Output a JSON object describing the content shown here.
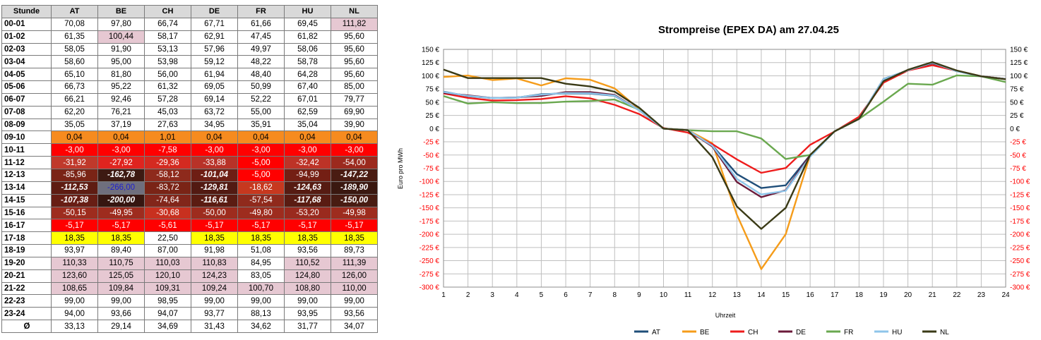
{
  "table": {
    "header_label": "Stunde",
    "countries": [
      "AT",
      "BE",
      "CH",
      "DE",
      "FR",
      "HU",
      "NL"
    ],
    "rows": [
      {
        "hour": "00-01",
        "cells": [
          {
            "v": "70,08"
          },
          {
            "v": "97,80"
          },
          {
            "v": "66,74"
          },
          {
            "v": "67,71"
          },
          {
            "v": "61,66"
          },
          {
            "v": "69,45"
          },
          {
            "v": "111,82",
            "bg": "#e6c8d2"
          }
        ]
      },
      {
        "hour": "01-02",
        "cells": [
          {
            "v": "61,35"
          },
          {
            "v": "100,44",
            "bg": "#e6c8d2"
          },
          {
            "v": "58,17"
          },
          {
            "v": "62,91"
          },
          {
            "v": "47,45"
          },
          {
            "v": "61,82"
          },
          {
            "v": "95,60"
          }
        ]
      },
      {
        "hour": "02-03",
        "cells": [
          {
            "v": "58,05"
          },
          {
            "v": "91,90"
          },
          {
            "v": "53,13"
          },
          {
            "v": "57,96"
          },
          {
            "v": "49,97"
          },
          {
            "v": "58,06"
          },
          {
            "v": "95,60"
          }
        ]
      },
      {
        "hour": "03-04",
        "cells": [
          {
            "v": "58,60"
          },
          {
            "v": "95,00"
          },
          {
            "v": "53,98"
          },
          {
            "v": "59,12"
          },
          {
            "v": "48,22"
          },
          {
            "v": "58,78"
          },
          {
            "v": "95,60"
          }
        ]
      },
      {
        "hour": "04-05",
        "cells": [
          {
            "v": "65,10"
          },
          {
            "v": "81,80"
          },
          {
            "v": "56,00"
          },
          {
            "v": "61,94"
          },
          {
            "v": "48,40"
          },
          {
            "v": "64,28"
          },
          {
            "v": "95,60"
          }
        ]
      },
      {
        "hour": "05-06",
        "cells": [
          {
            "v": "66,73"
          },
          {
            "v": "95,22"
          },
          {
            "v": "61,32"
          },
          {
            "v": "69,05"
          },
          {
            "v": "50,99"
          },
          {
            "v": "67,40"
          },
          {
            "v": "85,00"
          }
        ]
      },
      {
        "hour": "06-07",
        "cells": [
          {
            "v": "66,21"
          },
          {
            "v": "92,46"
          },
          {
            "v": "57,28"
          },
          {
            "v": "69,14"
          },
          {
            "v": "52,22"
          },
          {
            "v": "67,01"
          },
          {
            "v": "79,77"
          }
        ]
      },
      {
        "hour": "07-08",
        "cells": [
          {
            "v": "62,20"
          },
          {
            "v": "76,21"
          },
          {
            "v": "45,03"
          },
          {
            "v": "63,72"
          },
          {
            "v": "55,00"
          },
          {
            "v": "62,59"
          },
          {
            "v": "69,90"
          }
        ]
      },
      {
        "hour": "08-09",
        "cells": [
          {
            "v": "35,05"
          },
          {
            "v": "37,19"
          },
          {
            "v": "27,63"
          },
          {
            "v": "34,95"
          },
          {
            "v": "35,91"
          },
          {
            "v": "35,04"
          },
          {
            "v": "39,90"
          }
        ]
      },
      {
        "hour": "09-10",
        "cells": [
          {
            "v": "0,04",
            "bg": "#f68b1f"
          },
          {
            "v": "0,04",
            "bg": "#f68b1f"
          },
          {
            "v": "1,01",
            "bg": "#f68b1f"
          },
          {
            "v": "0,04",
            "bg": "#f68b1f"
          },
          {
            "v": "0,04",
            "bg": "#f68b1f"
          },
          {
            "v": "0,04",
            "bg": "#f68b1f"
          },
          {
            "v": "0,04",
            "bg": "#f68b1f"
          }
        ]
      },
      {
        "hour": "10-11",
        "cells": [
          {
            "v": "-3,00",
            "bg": "#ff0000",
            "fg": "#ffffff"
          },
          {
            "v": "-3,00",
            "bg": "#ff0000",
            "fg": "#ffffff"
          },
          {
            "v": "-7,58",
            "bg": "#ff0000",
            "fg": "#ffffff"
          },
          {
            "v": "-3,00",
            "bg": "#ff0000",
            "fg": "#ffffff"
          },
          {
            "v": "-3,00",
            "bg": "#ff0000",
            "fg": "#ffffff"
          },
          {
            "v": "-3,00",
            "bg": "#ff0000",
            "fg": "#ffffff"
          },
          {
            "v": "-3,00",
            "bg": "#ff0000",
            "fg": "#ffffff"
          }
        ]
      },
      {
        "hour": "11-12",
        "cells": [
          {
            "v": "-31,92",
            "bg": "#c0392b",
            "fg": "#ffffff"
          },
          {
            "v": "-27,92",
            "bg": "#e0241f",
            "fg": "#ffffff"
          },
          {
            "v": "-29,36",
            "bg": "#d42a20",
            "fg": "#ffffff"
          },
          {
            "v": "-33,88",
            "bg": "#b83228",
            "fg": "#ffffff"
          },
          {
            "v": "-5,00",
            "bg": "#ff0000",
            "fg": "#ffffff"
          },
          {
            "v": "-32,42",
            "bg": "#bd3327",
            "fg": "#ffffff"
          },
          {
            "v": "-54,00",
            "bg": "#9c2a1e",
            "fg": "#ffffff"
          }
        ]
      },
      {
        "hour": "12-13",
        "cells": [
          {
            "v": "-85,96",
            "bg": "#7a2416",
            "fg": "#ffffff"
          },
          {
            "v": "-162,78",
            "bg": "#3d1a12",
            "fg": "#ffffff",
            "b": true
          },
          {
            "v": "-58,12",
            "bg": "#8e2a1c",
            "fg": "#ffffff"
          },
          {
            "v": "-101,04",
            "bg": "#6e1e14",
            "fg": "#ffffff",
            "b": true
          },
          {
            "v": "-5,00",
            "bg": "#ff0000",
            "fg": "#ffffff"
          },
          {
            "v": "-94,99",
            "bg": "#741f14",
            "fg": "#ffffff"
          },
          {
            "v": "-147,22",
            "bg": "#4a1c12",
            "fg": "#ffffff",
            "b": true
          }
        ]
      },
      {
        "hour": "13-14",
        "cells": [
          {
            "v": "-112,53",
            "bg": "#5e1c12",
            "fg": "#ffffff",
            "b": true
          },
          {
            "v": "-266,00",
            "bg": "#6f6f7d",
            "fg": "#1f1fcf"
          },
          {
            "v": "-83,72",
            "bg": "#7a2416",
            "fg": "#ffffff"
          },
          {
            "v": "-129,81",
            "bg": "#521a12",
            "fg": "#ffffff",
            "b": true
          },
          {
            "v": "-18,62",
            "bg": "#c7381f",
            "fg": "#ffffff"
          },
          {
            "v": "-124,63",
            "bg": "#561b12",
            "fg": "#ffffff",
            "b": true
          },
          {
            "v": "-189,90",
            "bg": "#3a1810",
            "fg": "#ffffff",
            "b": true
          }
        ]
      },
      {
        "hour": "14-15",
        "cells": [
          {
            "v": "-107,38",
            "bg": "#681e14",
            "fg": "#ffffff",
            "b": true
          },
          {
            "v": "-200,00",
            "bg": "#361610",
            "fg": "#ffffff",
            "b": true
          },
          {
            "v": "-74,64",
            "bg": "#82261a",
            "fg": "#ffffff"
          },
          {
            "v": "-116,61",
            "bg": "#5b1c12",
            "fg": "#ffffff",
            "b": true
          },
          {
            "v": "-57,54",
            "bg": "#902a1c",
            "fg": "#ffffff"
          },
          {
            "v": "-117,68",
            "bg": "#5a1c12",
            "fg": "#ffffff",
            "b": true
          },
          {
            "v": "-150,00",
            "bg": "#481c12",
            "fg": "#ffffff",
            "b": true
          }
        ]
      },
      {
        "hour": "15-16",
        "cells": [
          {
            "v": "-50,15",
            "bg": "#9e2c1e",
            "fg": "#ffffff"
          },
          {
            "v": "-49,95",
            "bg": "#9e2c1e",
            "fg": "#ffffff"
          },
          {
            "v": "-30,68",
            "bg": "#c8301f",
            "fg": "#ffffff"
          },
          {
            "v": "-50,00",
            "bg": "#9e2c1e",
            "fg": "#ffffff"
          },
          {
            "v": "-49,80",
            "bg": "#9e2c1e",
            "fg": "#ffffff"
          },
          {
            "v": "-53,20",
            "bg": "#9a2a1e",
            "fg": "#ffffff"
          },
          {
            "v": "-49,98",
            "bg": "#9e2c1e",
            "fg": "#ffffff"
          }
        ]
      },
      {
        "hour": "16-17",
        "cells": [
          {
            "v": "-5,17",
            "bg": "#ff0000",
            "fg": "#ffffff"
          },
          {
            "v": "-5,17",
            "bg": "#ff0000",
            "fg": "#ffffff"
          },
          {
            "v": "-5,61",
            "bg": "#ff0000",
            "fg": "#ffffff"
          },
          {
            "v": "-5,17",
            "bg": "#ff0000",
            "fg": "#ffffff"
          },
          {
            "v": "-5,17",
            "bg": "#ff0000",
            "fg": "#ffffff"
          },
          {
            "v": "-5,17",
            "bg": "#ff0000",
            "fg": "#ffffff"
          },
          {
            "v": "-5,17",
            "bg": "#ff0000",
            "fg": "#ffffff"
          }
        ]
      },
      {
        "hour": "17-18",
        "cells": [
          {
            "v": "18,35",
            "bg": "#ffff00"
          },
          {
            "v": "18,35",
            "bg": "#ffff00"
          },
          {
            "v": "22,50"
          },
          {
            "v": "18,35",
            "bg": "#ffff00"
          },
          {
            "v": "18,35",
            "bg": "#ffff00"
          },
          {
            "v": "18,35",
            "bg": "#ffff00"
          },
          {
            "v": "18,35",
            "bg": "#ffff00"
          }
        ]
      },
      {
        "hour": "18-19",
        "cells": [
          {
            "v": "93,97"
          },
          {
            "v": "89,40"
          },
          {
            "v": "87,00"
          },
          {
            "v": "91,98"
          },
          {
            "v": "51,08"
          },
          {
            "v": "93,56"
          },
          {
            "v": "89,73"
          }
        ]
      },
      {
        "hour": "19-20",
        "cells": [
          {
            "v": "110,33",
            "bg": "#e6c8d2"
          },
          {
            "v": "110,75",
            "bg": "#e6c8d2"
          },
          {
            "v": "110,03",
            "bg": "#e6c8d2"
          },
          {
            "v": "110,83",
            "bg": "#e6c8d2"
          },
          {
            "v": "84,95"
          },
          {
            "v": "110,52",
            "bg": "#e6c8d2"
          },
          {
            "v": "111,39",
            "bg": "#e6c8d2"
          }
        ]
      },
      {
        "hour": "20-21",
        "cells": [
          {
            "v": "123,60",
            "bg": "#e6c8d2"
          },
          {
            "v": "125,05",
            "bg": "#e6c8d2"
          },
          {
            "v": "120,10",
            "bg": "#e6c8d2"
          },
          {
            "v": "124,23",
            "bg": "#e6c8d2"
          },
          {
            "v": "83,05"
          },
          {
            "v": "124,80",
            "bg": "#e6c8d2"
          },
          {
            "v": "126,00",
            "bg": "#e6c8d2"
          }
        ]
      },
      {
        "hour": "21-22",
        "cells": [
          {
            "v": "108,65",
            "bg": "#e6c8d2"
          },
          {
            "v": "109,84",
            "bg": "#e6c8d2"
          },
          {
            "v": "109,31",
            "bg": "#e6c8d2"
          },
          {
            "v": "109,24",
            "bg": "#e6c8d2"
          },
          {
            "v": "100,70",
            "bg": "#e6c8d2"
          },
          {
            "v": "108,80",
            "bg": "#e6c8d2"
          },
          {
            "v": "110,00",
            "bg": "#e6c8d2"
          }
        ]
      },
      {
        "hour": "22-23",
        "cells": [
          {
            "v": "99,00"
          },
          {
            "v": "99,00"
          },
          {
            "v": "98,95"
          },
          {
            "v": "99,00"
          },
          {
            "v": "99,00"
          },
          {
            "v": "99,00"
          },
          {
            "v": "99,00"
          }
        ]
      },
      {
        "hour": "23-24",
        "cells": [
          {
            "v": "94,00"
          },
          {
            "v": "93,66"
          },
          {
            "v": "94,07"
          },
          {
            "v": "93,77"
          },
          {
            "v": "88,13"
          },
          {
            "v": "93,95"
          },
          {
            "v": "93,56"
          }
        ]
      }
    ],
    "average": {
      "label": "Ø",
      "values": [
        "33,13",
        "29,14",
        "34,69",
        "31,43",
        "34,62",
        "31,77",
        "34,07"
      ]
    }
  },
  "chart_data": {
    "type": "line",
    "title": "Strompreise (EPEX DA) am 27.04.25",
    "xlabel": "Uhrzeit",
    "ylabel": "Euro pro MWh",
    "x": [
      1,
      2,
      3,
      4,
      5,
      6,
      7,
      8,
      9,
      10,
      11,
      12,
      13,
      14,
      15,
      16,
      17,
      18,
      19,
      20,
      21,
      22,
      23,
      24
    ],
    "ylim": [
      -300,
      150
    ],
    "yticks": [
      150,
      125,
      100,
      75,
      50,
      25,
      0,
      -25,
      -50,
      -75,
      -100,
      -125,
      -150,
      -175,
      -200,
      -225,
      -250,
      -275,
      -300
    ],
    "ytick_labels": [
      "150 €",
      "125 €",
      "100 €",
      "75 €",
      "50 €",
      "25 €",
      "0 €",
      "-25 €",
      "-50 €",
      "-75 €",
      "-100 €",
      "-125 €",
      "-150 €",
      "-175 €",
      "-200 €",
      "-225 €",
      "-250 €",
      "-275 €",
      "-300 €"
    ],
    "negative_tick_color": "#ff0000",
    "grid": true,
    "legend": "bottom",
    "series": [
      {
        "name": "AT",
        "color": "#1f4e79",
        "values": [
          70.08,
          61.35,
          58.05,
          58.6,
          65.1,
          66.73,
          66.21,
          62.2,
          35.05,
          0.04,
          -3.0,
          -31.92,
          -85.96,
          -112.53,
          -107.38,
          -50.15,
          -5.17,
          18.35,
          93.97,
          110.33,
          123.6,
          108.65,
          99.0,
          94.0
        ]
      },
      {
        "name": "BE",
        "color": "#f59c1a",
        "values": [
          97.8,
          100.44,
          91.9,
          95.0,
          81.8,
          95.22,
          92.46,
          76.21,
          37.19,
          0.04,
          -3.0,
          -27.92,
          -162.78,
          -266.0,
          -200.0,
          -49.95,
          -5.17,
          18.35,
          89.4,
          110.75,
          125.05,
          109.84,
          99.0,
          93.66
        ]
      },
      {
        "name": "CH",
        "color": "#ee1c1c",
        "values": [
          66.74,
          58.17,
          53.13,
          53.98,
          56.0,
          61.32,
          57.28,
          45.03,
          27.63,
          1.01,
          -7.58,
          -29.36,
          -58.12,
          -83.72,
          -74.64,
          -30.68,
          -5.61,
          22.5,
          87.0,
          110.03,
          120.1,
          109.31,
          98.95,
          94.07
        ]
      },
      {
        "name": "DE",
        "color": "#6b1a3a",
        "values": [
          67.71,
          62.91,
          57.96,
          59.12,
          61.94,
          69.05,
          69.14,
          63.72,
          34.95,
          0.04,
          -3.0,
          -33.88,
          -101.04,
          -129.81,
          -116.61,
          -50.0,
          -5.17,
          18.35,
          91.98,
          110.83,
          124.23,
          109.24,
          99.0,
          93.77
        ]
      },
      {
        "name": "FR",
        "color": "#6aa84f",
        "values": [
          61.66,
          47.45,
          49.97,
          48.22,
          48.4,
          50.99,
          52.22,
          55.0,
          35.91,
          0.04,
          -3.0,
          -5.0,
          -5.0,
          -18.62,
          -57.54,
          -49.8,
          -5.17,
          18.35,
          51.08,
          84.95,
          83.05,
          100.7,
          99.0,
          88.13
        ]
      },
      {
        "name": "HU",
        "color": "#8ec5ea",
        "values": [
          69.45,
          61.82,
          58.06,
          58.78,
          64.28,
          67.4,
          67.01,
          62.59,
          35.04,
          0.04,
          -3.0,
          -32.42,
          -94.99,
          -124.63,
          -117.68,
          -53.2,
          -5.17,
          18.35,
          93.56,
          110.52,
          124.8,
          108.8,
          99.0,
          93.95
        ]
      },
      {
        "name": "NL",
        "color": "#3a3a16",
        "values": [
          111.82,
          95.6,
          95.6,
          95.6,
          95.6,
          85.0,
          79.77,
          69.9,
          39.9,
          0.04,
          -3.0,
          -54.0,
          -147.22,
          -189.9,
          -150.0,
          -49.98,
          -5.17,
          18.35,
          89.73,
          111.39,
          126.0,
          110.0,
          99.0,
          93.56
        ]
      }
    ]
  }
}
